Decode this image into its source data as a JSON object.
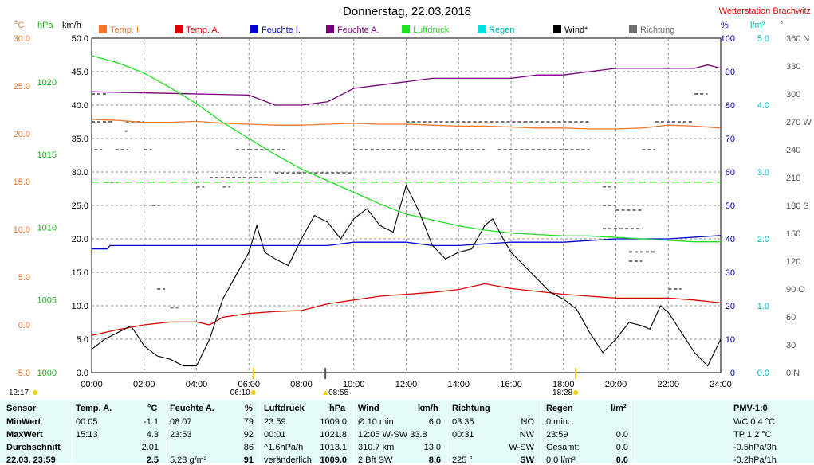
{
  "header": {
    "title": "Donnerstag, 22.03.2018",
    "station": "Wetterstation Brachwitz"
  },
  "colors": {
    "temp_i": "#f07830",
    "temp_a": "#e00000",
    "feuchte_i": "#0000d0",
    "feuchte_a": "#780078",
    "luftdruck": "#20e020",
    "regen": "#00e0e0",
    "wind": "#000000",
    "richtung": "#707070"
  },
  "chart_data": {
    "type": "line",
    "title": "Donnerstag, 22.03.2018",
    "x_label": "",
    "x_unit": "hours",
    "xlim": [
      0,
      24
    ],
    "x_ticks": [
      "00:00",
      "02:00",
      "04:00",
      "06:00",
      "08:00",
      "10:00",
      "12:00",
      "14:00",
      "16:00",
      "18:00",
      "20:00",
      "22:00",
      "24:00"
    ],
    "grid": true,
    "legend_position": "top",
    "legend": [
      "Temp. I.",
      "Temp. A.",
      "Feuchte I.",
      "Feuchte A.",
      "Luftdruck",
      "Regen",
      "Wind*",
      "Richtung"
    ],
    "axes": {
      "temp_c": {
        "unit_label": "°C",
        "range": [
          -5,
          30
        ],
        "ticks": [
          "30.0",
          "25.0",
          "20.0",
          "15.0",
          "10.0",
          "5.0",
          "0.0",
          "-5.0"
        ]
      },
      "hpa": {
        "unit_label": "hPa",
        "range": [
          1000,
          1023
        ],
        "ticks": [
          "1020",
          "1015",
          "1010",
          "1005",
          "1000"
        ]
      },
      "kmh": {
        "unit_label": "km/h",
        "range": [
          0,
          50
        ],
        "ticks": [
          "50.0",
          "45.0",
          "40.0",
          "35.0",
          "30.0",
          "25.0",
          "20.0",
          "15.0",
          "10.0",
          "5.0",
          "0.0"
        ]
      },
      "percent": {
        "unit_label": "%",
        "range": [
          0,
          100
        ],
        "ticks": [
          "100",
          "90",
          "80",
          "70",
          "60",
          "50",
          "40",
          "30",
          "20",
          "10",
          "0"
        ]
      },
      "rain": {
        "unit_label": "l/m²",
        "range": [
          0,
          5
        ],
        "ticks": [
          "5.0",
          "4.0",
          "3.0",
          "2.0",
          "1.0",
          "0.0"
        ]
      },
      "dir": {
        "unit_label": "°",
        "range": [
          0,
          360
        ],
        "ticks": [
          "360 N",
          "330",
          "300",
          "270 W",
          "240",
          "210",
          "180 S",
          "150",
          "120",
          "90 O",
          "60",
          "30",
          "0 N"
        ]
      }
    },
    "series": [
      {
        "name": "Temp. I.",
        "axis": "temp_c",
        "x": [
          0,
          1,
          2,
          3,
          4,
          5,
          6,
          7,
          8,
          9,
          10,
          11,
          12,
          13,
          14,
          15,
          16,
          17,
          18,
          19,
          20,
          21,
          22,
          23,
          24
        ],
        "y": [
          21.5,
          21.4,
          21.2,
          21.2,
          21.3,
          21.1,
          21.0,
          20.9,
          20.9,
          21.0,
          21.1,
          21.0,
          21.0,
          20.9,
          20.8,
          20.8,
          20.7,
          20.6,
          20.6,
          20.5,
          20.5,
          20.6,
          20.9,
          20.8,
          20.6
        ]
      },
      {
        "name": "Temp. A.",
        "axis": "temp_c",
        "x": [
          0,
          1,
          2,
          3,
          4,
          4.5,
          5,
          6,
          7,
          8,
          9,
          10,
          11,
          12,
          13,
          14,
          15,
          16,
          17,
          18,
          19,
          20,
          21,
          22,
          23,
          24
        ],
        "y": [
          -1.1,
          -0.5,
          0.0,
          0.3,
          0.3,
          0.0,
          0.8,
          1.2,
          1.4,
          1.5,
          2.2,
          2.6,
          3.0,
          3.2,
          3.4,
          3.7,
          4.3,
          3.8,
          3.5,
          3.2,
          3.0,
          2.8,
          2.8,
          2.8,
          2.6,
          2.3
        ]
      },
      {
        "name": "Feuchte I.",
        "axis": "percent",
        "x": [
          0,
          0.6,
          0.7,
          2,
          4,
          6,
          8,
          9,
          10,
          12,
          13,
          14,
          16,
          18,
          20,
          22,
          24
        ],
        "y": [
          37,
          37,
          38,
          38,
          38,
          38,
          38,
          38,
          39,
          39,
          38,
          38,
          39,
          39,
          40,
          40,
          41
        ]
      },
      {
        "name": "Feuchte A.",
        "axis": "percent",
        "x": [
          0,
          6,
          7,
          8,
          9,
          10,
          11,
          12,
          13,
          14,
          15,
          16,
          17,
          18,
          20,
          22,
          23,
          23.5,
          24
        ],
        "y": [
          84,
          83,
          80,
          80,
          81,
          85,
          86,
          87,
          88,
          88,
          88,
          88,
          89,
          89,
          91,
          91,
          91,
          92,
          91
        ]
      },
      {
        "name": "Luftdruck",
        "axis": "hpa",
        "x": [
          0,
          1,
          2,
          3,
          4,
          5,
          6,
          7,
          8,
          9,
          10,
          11,
          12,
          13,
          14,
          15,
          16,
          17,
          18,
          19,
          20,
          21,
          22,
          23,
          24
        ],
        "y": [
          1021.8,
          1021.3,
          1020.6,
          1019.6,
          1018.5,
          1017.2,
          1016.1,
          1015.0,
          1014.0,
          1013.2,
          1012.4,
          1011.6,
          1010.9,
          1010.5,
          1010.1,
          1009.8,
          1009.6,
          1009.5,
          1009.4,
          1009.4,
          1009.3,
          1009.2,
          1009.1,
          1009.0,
          1009.0
        ]
      },
      {
        "name": "Luftdruck-Mittel",
        "axis": "hpa",
        "x": [
          0,
          24
        ],
        "y": [
          1013.1,
          1013.1
        ]
      },
      {
        "name": "Wind*",
        "axis": "kmh",
        "x": [
          0,
          0.5,
          1,
          1.5,
          2,
          2.5,
          3,
          3.5,
          4,
          4.5,
          5,
          5.5,
          6,
          6.3,
          6.6,
          7,
          7.5,
          8,
          8.5,
          9,
          9.5,
          10,
          10.5,
          11,
          11.5,
          12,
          12.5,
          13,
          13.5,
          14,
          14.5,
          15,
          15.3,
          15.7,
          16,
          16.5,
          17,
          17.5,
          18,
          18.5,
          19,
          19.5,
          20,
          20.5,
          21,
          21.3,
          21.7,
          22,
          22.5,
          23,
          23.5,
          24
        ],
        "y": [
          3.5,
          5.0,
          6.0,
          7.0,
          4.0,
          2.5,
          2.0,
          1.0,
          1.0,
          5.0,
          11.0,
          14.5,
          18.0,
          22.0,
          18.0,
          17.0,
          16.0,
          20.0,
          23.5,
          22.5,
          20.0,
          23.0,
          24.5,
          22.0,
          21.0,
          28.0,
          24.0,
          19.0,
          17.0,
          18.0,
          18.5,
          22.0,
          23.0,
          20.0,
          18.0,
          16.0,
          14.0,
          12.0,
          11.0,
          9.5,
          6.0,
          3.0,
          5.0,
          7.5,
          7.0,
          6.5,
          10.0,
          9.0,
          6.0,
          3.0,
          1.0,
          5.0
        ]
      }
    ],
    "richtung_segments": [
      {
        "x": [
          0.0,
          0.6
        ],
        "y": 300
      },
      {
        "x": 1.3,
        "y": 260
      },
      {
        "x": [
          0.0,
          0.8
        ],
        "y": 270
      },
      {
        "x": [
          1.3,
          2.0
        ],
        "y": 270
      },
      {
        "x": [
          0.1,
          0.4
        ],
        "y": 240
      },
      {
        "x": [
          0.9,
          1.4
        ],
        "y": 240
      },
      {
        "x": [
          5.5,
          6.0
        ],
        "y": 240
      },
      {
        "x": [
          6.0,
          7.5
        ],
        "y": 240
      },
      {
        "x": [
          4.5,
          6.5
        ],
        "y": 210
      },
      {
        "x": [
          0.5,
          1.0
        ],
        "y": 205
      },
      {
        "x": [
          2.0,
          2.3
        ],
        "y": 240
      },
      {
        "x": [
          10.0,
          15.0
        ],
        "y": 240
      },
      {
        "x": [
          15.5,
          19.0
        ],
        "y": 240
      },
      {
        "x": [
          21.0,
          21.5
        ],
        "y": 240
      },
      {
        "x": [
          12.0,
          16.5
        ],
        "y": 270
      },
      {
        "x": [
          16.5,
          19.0
        ],
        "y": 270
      },
      {
        "x": [
          21.5,
          23.0
        ],
        "y": 270
      },
      {
        "x": [
          7.0,
          8.5
        ],
        "y": 215
      },
      {
        "x": [
          8.5,
          10.0
        ],
        "y": 215
      },
      {
        "x": [
          2.3,
          2.6
        ],
        "y": 180
      },
      {
        "x": [
          19.5,
          20.0
        ],
        "y": 180
      },
      {
        "x": [
          20.0,
          21.0
        ],
        "y": 175
      },
      {
        "x": [
          19.5,
          21.0
        ],
        "y": 155
      },
      {
        "x": [
          20.5,
          21.5
        ],
        "y": 130
      },
      {
        "x": [
          4.0,
          4.3
        ],
        "y": 200
      },
      {
        "x": [
          5.0,
          5.3
        ],
        "y": 200
      },
      {
        "x": [
          19.5,
          20.0
        ],
        "y": 200
      },
      {
        "x": [
          23.0,
          23.5
        ],
        "y": 300
      },
      {
        "x": [
          20.5,
          21.0
        ],
        "y": 120
      },
      {
        "x": [
          2.5,
          2.8
        ],
        "y": 90
      },
      {
        "x": [
          3.0,
          3.3
        ],
        "y": 70
      },
      {
        "x": [
          22.0,
          22.5
        ],
        "y": 90
      }
    ],
    "markers": {
      "sunrise": {
        "x": 6.1667,
        "label": "06:10"
      },
      "transit": {
        "x": 8.9167,
        "label": "08:55"
      },
      "sunset": {
        "x": 18.4667,
        "label": "18:28"
      },
      "moon": {
        "x": 0.2833,
        "label": "12:17"
      }
    }
  },
  "table": {
    "headers": [
      "Sensor",
      "Temp. A.",
      "°C",
      "Feuchte A.",
      "%",
      "Luftdruck",
      "hPa",
      "Wind",
      "km/h",
      "Richtung",
      "",
      "Regen",
      "l/m²",
      "PMV-1:0"
    ],
    "rows": [
      {
        "label": "MinWert",
        "c1": "00:05",
        "c2": "-1.1",
        "c3": "08:07",
        "c4": "79",
        "c5": "23:59",
        "c6": "1009.0",
        "c7": "Ø 10 min.",
        "c8": "6.0",
        "c9": "03:35",
        "c10": "NO",
        "c11": "0 min.",
        "c12": "",
        "c13": "WC 0.4 °C"
      },
      {
        "label": "MaxWert",
        "c1": "15:13",
        "c2": "4.3",
        "c3": "23:53",
        "c4": "92",
        "c5": "00:01",
        "c6": "1021.8",
        "c7": "12:05   W-SW 33.8",
        "c8": "",
        "c9": "00:31",
        "c10": "NW",
        "c11": "23:59",
        "c12": "0.0",
        "c13": "TP 1.2 °C"
      },
      {
        "label": "Durchschnitt",
        "c1": "",
        "c2": "2.01",
        "c3": "",
        "c4": "86",
        "c5": "^1.6hPa/h",
        "c6": "1013.1",
        "c7": "310.7 km",
        "c8": "13.0",
        "c9": "",
        "c10": "W-SW",
        "c11": "Gesamt:",
        "c12": "0.0",
        "c13": "-0.5hPa/3h"
      },
      {
        "label": "22.03. 23:59",
        "c1": "",
        "c2": "2.5",
        "c3": "5.23 g/m³",
        "c4": "91",
        "c5": "veränderlich",
        "c6": "1009.0",
        "c7": "2 Bft SW",
        "c8": "8.6",
        "c9": "225 °",
        "c10": "SW",
        "c11": "0.0 l/m²",
        "c12": "0.0",
        "c13": "-0.2hPa/1h"
      }
    ]
  }
}
